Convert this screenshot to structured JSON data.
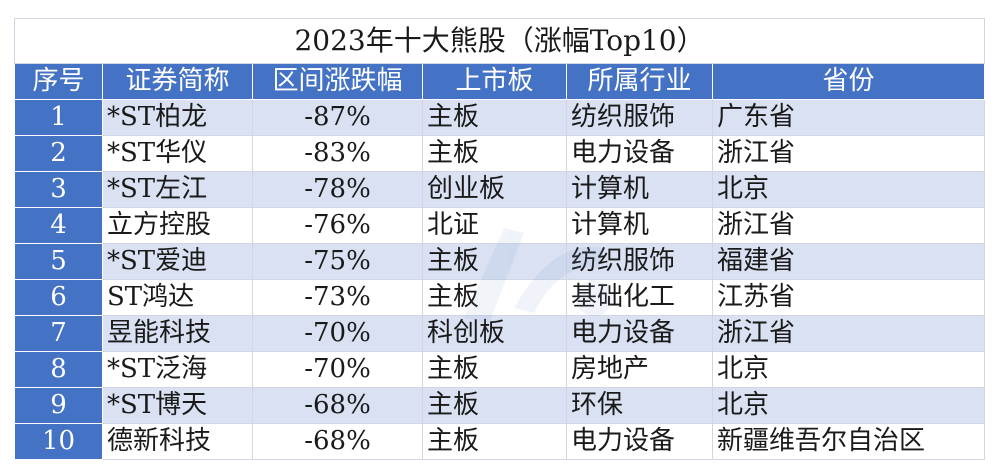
{
  "title": "2023年十大熊股（涨幅Top10）",
  "headers": [
    "序号",
    "证券简称",
    "区间涨跌幅",
    "上市板",
    "所属行业",
    "省份"
  ],
  "rows": [
    {
      "no": "1",
      "name": "*ST柏龙",
      "change": "-87%",
      "board": "主板",
      "industry": "纺织服饰",
      "province": "广东省"
    },
    {
      "no": "2",
      "name": "*ST华仪",
      "change": "-83%",
      "board": "主板",
      "industry": "电力设备",
      "province": "浙江省"
    },
    {
      "no": "3",
      "name": "*ST左江",
      "change": "-78%",
      "board": "创业板",
      "industry": "计算机",
      "province": "北京"
    },
    {
      "no": "4",
      "name": "立方控股",
      "change": "-76%",
      "board": "北证",
      "industry": "计算机",
      "province": "浙江省"
    },
    {
      "no": "5",
      "name": "*ST爱迪",
      "change": "-75%",
      "board": "主板",
      "industry": "纺织服饰",
      "province": "福建省"
    },
    {
      "no": "6",
      "name": "ST鸿达",
      "change": "-73%",
      "board": "主板",
      "industry": "基础化工",
      "province": "江苏省"
    },
    {
      "no": "7",
      "name": "昱能科技",
      "change": "-70%",
      "board": "科创板",
      "industry": "电力设备",
      "province": "浙江省"
    },
    {
      "no": "8",
      "name": "*ST泛海",
      "change": "-70%",
      "board": "主板",
      "industry": "房地产",
      "province": "北京"
    },
    {
      "no": "9",
      "name": "*ST博天",
      "change": "-68%",
      "board": "主板",
      "industry": "环保",
      "province": "北京"
    },
    {
      "no": "10",
      "name": "德新科技",
      "change": "-68%",
      "board": "主板",
      "industry": "电力设备",
      "province": "新疆维吾尔自治区"
    }
  ],
  "colors": {
    "header_bg": "#4472c4",
    "band_bg": "#d9e1f2",
    "header_text": "#ffffff"
  }
}
